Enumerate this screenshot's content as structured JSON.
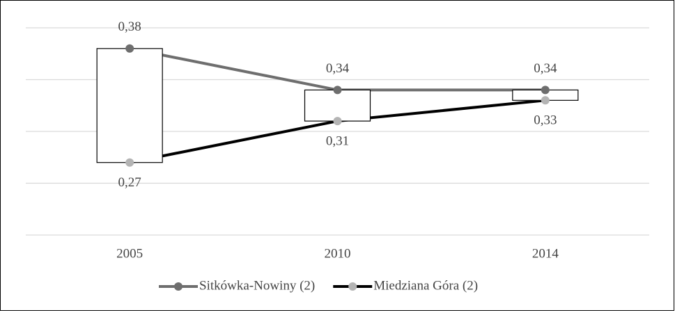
{
  "chart_data": {
    "type": "line",
    "categories": [
      "2005",
      "2010",
      "2014"
    ],
    "series": [
      {
        "name": "Sitkówka-Nowiny (2)",
        "color": "#6e6e6e",
        "marker_color": "#6e6e6e",
        "values": [
          0.38,
          0.34,
          0.34
        ],
        "value_labels": [
          "0,38",
          "0,34",
          "0,34"
        ]
      },
      {
        "name": "Miedziana Góra (2)",
        "color": "#000000",
        "marker_color": "#b4b4b4",
        "values": [
          0.27,
          0.31,
          0.33
        ],
        "value_labels": [
          "0,27",
          "0,31",
          "0,33"
        ]
      }
    ],
    "up_down_bars": true,
    "ylim": [
      0.2,
      0.4
    ],
    "yticks": [
      0.2,
      0.25,
      0.3,
      0.35,
      0.4
    ],
    "grid": true,
    "legend": "bottom"
  }
}
